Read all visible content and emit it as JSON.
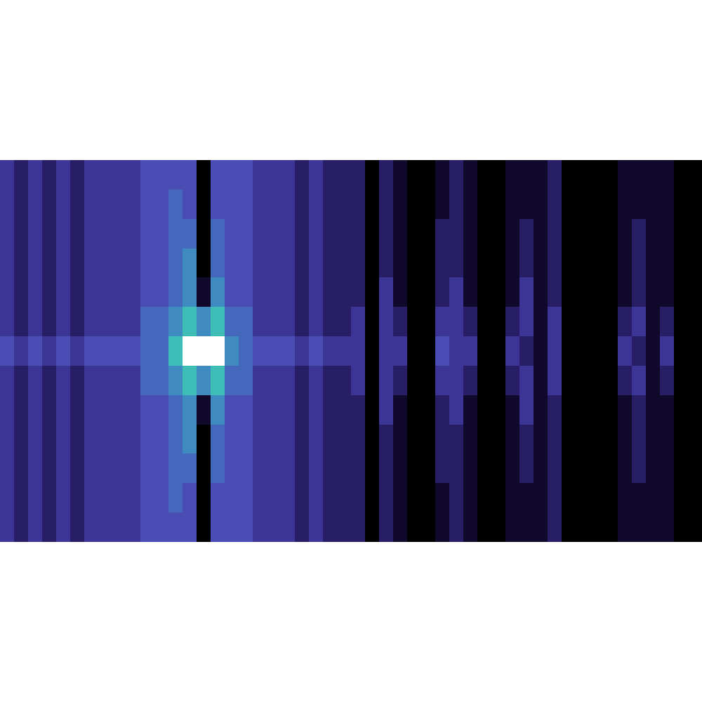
{
  "chart_data": {
    "type": "heatmap",
    "tick_labels": false,
    "zlim": [
      0,
      9
    ],
    "cells": [
      [
        3,
        2,
        3,
        2,
        3,
        2,
        3,
        3,
        3,
        3,
        4,
        4,
        4,
        4,
        0,
        4,
        4,
        4,
        3,
        3,
        3,
        2,
        3,
        2,
        2,
        2,
        0,
        2,
        1,
        0,
        0,
        1,
        2,
        1,
        0,
        0,
        1,
        1,
        1,
        2,
        0,
        0,
        0,
        0,
        1,
        1,
        1,
        1,
        0,
        0
      ],
      [
        3,
        2,
        3,
        2,
        3,
        2,
        3,
        3,
        3,
        3,
        4,
        4,
        5,
        4,
        0,
        4,
        4,
        4,
        3,
        3,
        3,
        2,
        3,
        2,
        2,
        2,
        0,
        2,
        1,
        0,
        0,
        1,
        2,
        1,
        0,
        0,
        1,
        1,
        1,
        2,
        0,
        0,
        0,
        0,
        1,
        1,
        1,
        1,
        0,
        0
      ],
      [
        3,
        2,
        3,
        2,
        3,
        2,
        3,
        3,
        3,
        3,
        4,
        4,
        5,
        5,
        0,
        5,
        4,
        4,
        3,
        3,
        3,
        2,
        3,
        2,
        2,
        2,
        0,
        2,
        1,
        0,
        0,
        2,
        2,
        1,
        0,
        0,
        1,
        2,
        1,
        2,
        0,
        0,
        0,
        0,
        1,
        2,
        1,
        1,
        0,
        0
      ],
      [
        3,
        2,
        3,
        2,
        3,
        2,
        3,
        3,
        3,
        3,
        4,
        4,
        5,
        6,
        0,
        5,
        4,
        4,
        3,
        3,
        3,
        2,
        3,
        2,
        2,
        2,
        0,
        2,
        1,
        0,
        0,
        2,
        2,
        1,
        0,
        0,
        1,
        2,
        1,
        2,
        0,
        0,
        0,
        0,
        1,
        2,
        1,
        1,
        0,
        0
      ],
      [
        3,
        2,
        3,
        2,
        3,
        2,
        3,
        3,
        3,
        3,
        4,
        4,
        5,
        6,
        1,
        6,
        4,
        4,
        3,
        3,
        3,
        2,
        3,
        2,
        2,
        2,
        0,
        3,
        1,
        0,
        0,
        2,
        3,
        1,
        0,
        0,
        1,
        3,
        1,
        2,
        0,
        0,
        0,
        0,
        1,
        2,
        1,
        1,
        0,
        0
      ],
      [
        3,
        2,
        3,
        2,
        3,
        2,
        3,
        3,
        3,
        3,
        5,
        5,
        6,
        7,
        6,
        7,
        5,
        5,
        3,
        3,
        3,
        2,
        3,
        2,
        2,
        3,
        0,
        3,
        2,
        0,
        0,
        3,
        3,
        2,
        0,
        0,
        2,
        3,
        1,
        3,
        0,
        0,
        0,
        0,
        2,
        3,
        1,
        2,
        0,
        0
      ],
      [
        4,
        3,
        4,
        3,
        4,
        3,
        4,
        4,
        4,
        4,
        5,
        5,
        7,
        9,
        9,
        9,
        6,
        5,
        4,
        4,
        4,
        3,
        4,
        3,
        3,
        3,
        0,
        3,
        3,
        0,
        0,
        4,
        3,
        3,
        0,
        0,
        3,
        2,
        1,
        3,
        0,
        0,
        0,
        0,
        3,
        2,
        1,
        3,
        0,
        0
      ],
      [
        3,
        2,
        3,
        2,
        3,
        2,
        3,
        3,
        3,
        3,
        5,
        5,
        6,
        7,
        6,
        7,
        5,
        5,
        3,
        3,
        3,
        2,
        3,
        2,
        2,
        3,
        0,
        3,
        2,
        0,
        0,
        3,
        3,
        2,
        0,
        0,
        2,
        3,
        1,
        3,
        0,
        0,
        0,
        0,
        2,
        3,
        1,
        2,
        0,
        0
      ],
      [
        3,
        2,
        3,
        2,
        3,
        2,
        3,
        3,
        3,
        3,
        4,
        4,
        5,
        6,
        1,
        6,
        4,
        4,
        3,
        3,
        3,
        2,
        3,
        2,
        2,
        2,
        0,
        3,
        1,
        0,
        0,
        2,
        3,
        1,
        0,
        0,
        1,
        3,
        1,
        2,
        0,
        0,
        0,
        0,
        1,
        2,
        1,
        1,
        0,
        0
      ],
      [
        3,
        2,
        3,
        2,
        3,
        2,
        3,
        3,
        3,
        3,
        4,
        4,
        5,
        6,
        0,
        5,
        4,
        4,
        3,
        3,
        3,
        2,
        3,
        2,
        2,
        2,
        0,
        2,
        1,
        0,
        0,
        2,
        2,
        1,
        0,
        0,
        1,
        2,
        1,
        2,
        0,
        0,
        0,
        0,
        1,
        2,
        1,
        1,
        0,
        0
      ],
      [
        3,
        2,
        3,
        2,
        3,
        2,
        3,
        3,
        3,
        3,
        4,
        4,
        5,
        5,
        0,
        5,
        4,
        4,
        3,
        3,
        3,
        2,
        3,
        2,
        2,
        2,
        0,
        2,
        1,
        0,
        0,
        2,
        2,
        1,
        0,
        0,
        1,
        2,
        1,
        2,
        0,
        0,
        0,
        0,
        1,
        2,
        1,
        1,
        0,
        0
      ],
      [
        3,
        2,
        3,
        2,
        3,
        2,
        3,
        3,
        3,
        3,
        4,
        4,
        5,
        4,
        0,
        4,
        4,
        4,
        3,
        3,
        3,
        2,
        3,
        2,
        2,
        2,
        0,
        2,
        1,
        0,
        0,
        1,
        2,
        1,
        0,
        0,
        1,
        1,
        1,
        2,
        0,
        0,
        0,
        0,
        1,
        1,
        1,
        1,
        0,
        0
      ],
      [
        3,
        2,
        3,
        2,
        3,
        2,
        3,
        3,
        3,
        3,
        4,
        4,
        4,
        4,
        0,
        4,
        4,
        4,
        3,
        3,
        3,
        2,
        3,
        2,
        2,
        2,
        0,
        2,
        1,
        0,
        0,
        1,
        2,
        1,
        0,
        0,
        1,
        1,
        1,
        2,
        0,
        0,
        0,
        0,
        1,
        1,
        1,
        1,
        0,
        0
      ]
    ]
  }
}
